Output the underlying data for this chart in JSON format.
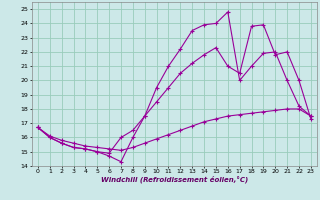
{
  "xlabel": "Windchill (Refroidissement éolien,°C)",
  "bg_color": "#cce8e8",
  "grid_color": "#99ccbb",
  "line_color": "#990099",
  "xlim": [
    -0.5,
    23.5
  ],
  "ylim": [
    14,
    25.5
  ],
  "xticks": [
    0,
    1,
    2,
    3,
    4,
    5,
    6,
    7,
    8,
    9,
    10,
    11,
    12,
    13,
    14,
    15,
    16,
    17,
    18,
    19,
    20,
    21,
    22,
    23
  ],
  "yticks": [
    14,
    15,
    16,
    17,
    18,
    19,
    20,
    21,
    22,
    23,
    24,
    25
  ],
  "series": [
    {
      "x": [
        0,
        1,
        2,
        3,
        4,
        5,
        6,
        7,
        8,
        9,
        10,
        11,
        12,
        13,
        14,
        15,
        16,
        17,
        18,
        19,
        20,
        21,
        22,
        23
      ],
      "y": [
        16.7,
        16.0,
        15.6,
        15.3,
        15.2,
        15.0,
        14.7,
        14.3,
        16.0,
        17.5,
        19.5,
        21.0,
        22.2,
        23.5,
        23.9,
        24.0,
        24.8,
        20.0,
        21.0,
        21.9,
        22.0,
        20.0,
        18.2,
        17.5
      ]
    },
    {
      "x": [
        0,
        1,
        2,
        3,
        4,
        5,
        6,
        7,
        8,
        9,
        10,
        11,
        12,
        13,
        14,
        15,
        16,
        17,
        18,
        19,
        20,
        21,
        22,
        23
      ],
      "y": [
        16.7,
        16.0,
        15.6,
        15.3,
        15.2,
        15.0,
        14.9,
        16.0,
        16.5,
        17.5,
        18.5,
        19.5,
        20.5,
        21.2,
        21.8,
        22.3,
        21.0,
        20.5,
        23.8,
        23.9,
        21.8,
        22.0,
        20.0,
        17.3
      ]
    },
    {
      "x": [
        0,
        1,
        2,
        3,
        4,
        5,
        6,
        7,
        8,
        9,
        10,
        11,
        12,
        13,
        14,
        15,
        16,
        17,
        18,
        19,
        20,
        21,
        22,
        23
      ],
      "y": [
        16.7,
        16.1,
        15.8,
        15.6,
        15.4,
        15.3,
        15.2,
        15.1,
        15.3,
        15.6,
        15.9,
        16.2,
        16.5,
        16.8,
        17.1,
        17.3,
        17.5,
        17.6,
        17.7,
        17.8,
        17.9,
        18.0,
        18.0,
        17.5
      ]
    }
  ]
}
